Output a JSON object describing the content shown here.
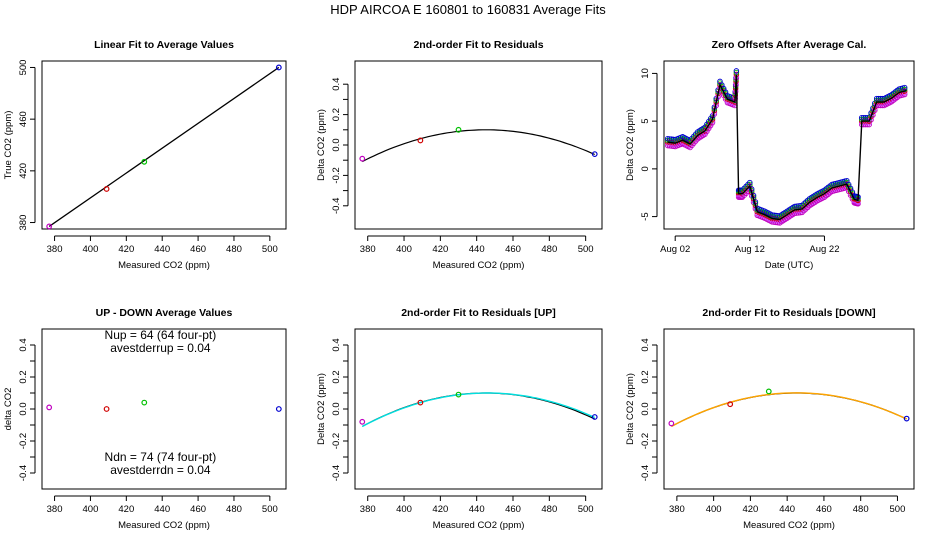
{
  "suptitle": "HDP   AIRCOA E   160801 to 160831   Average Fits",
  "colors": {
    "purple": "#c000c0",
    "red": "#d00000",
    "green": "#00c000",
    "blue": "#0000d0",
    "black": "#000000",
    "cyan": "#00e0e0",
    "orange": "#ffa500",
    "magenta": "#d040ff"
  },
  "chart_data": [
    {
      "id": "p1",
      "type": "scatter",
      "title": "Linear Fit to Average Values",
      "xlabel": "Measured CO2 (ppm)",
      "ylabel": "True CO2 (ppm)",
      "xlim": [
        373,
        509
      ],
      "ylim": [
        375,
        505
      ],
      "xticks": [
        380,
        400,
        420,
        440,
        460,
        480,
        500
      ],
      "yticks": [
        380,
        420,
        460,
        500
      ],
      "points": [
        {
          "x": 377,
          "y": 377,
          "color": "purple"
        },
        {
          "x": 409,
          "y": 406,
          "color": "red"
        },
        {
          "x": 430,
          "y": 427,
          "color": "green"
        },
        {
          "x": 505,
          "y": 500,
          "color": "blue"
        }
      ],
      "fit_lines": [
        {
          "x": [
            377,
            505
          ],
          "y": [
            377,
            500
          ],
          "color": "black"
        }
      ]
    },
    {
      "id": "p2",
      "type": "scatter",
      "title": "2nd-order Fit to Residuals",
      "xlabel": "Measured CO2 (ppm)",
      "ylabel": "Delta CO2 (ppm)",
      "xlim": [
        373,
        509
      ],
      "ylim": [
        -0.5,
        0.5
      ],
      "xticks": [
        380,
        400,
        420,
        440,
        460,
        480,
        500
      ],
      "yticks": [
        -0.4,
        -0.3,
        -0.2,
        -0.1,
        0.0,
        0.1,
        0.2,
        0.3,
        0.4
      ],
      "points": [
        {
          "x": 377,
          "y": -0.09,
          "color": "purple"
        },
        {
          "x": 409,
          "y": 0.03,
          "color": "red"
        },
        {
          "x": 430,
          "y": 0.1,
          "color": "green"
        },
        {
          "x": 505,
          "y": -0.06,
          "color": "blue"
        }
      ],
      "fit_curves": [
        {
          "vertex_x": 445,
          "vertex_y": 0.1,
          "a": -4.52e-05,
          "x_range": [
            377,
            505
          ],
          "color": "black"
        }
      ]
    },
    {
      "id": "p3",
      "type": "line",
      "title": "Zero Offsets After Average Cal.",
      "xlabel": "Date (UTC)",
      "ylabel": "Delta CO2 (ppm)",
      "xlim": [
        -0.5,
        33
      ],
      "ylim": [
        -6.3,
        11.3
      ],
      "xticks": [
        1,
        11,
        21
      ],
      "xtick_labels": [
        "Aug 02",
        "Aug 12",
        "Aug 22"
      ],
      "yticks": [
        -5,
        0,
        5,
        10
      ],
      "series": [
        {
          "name": "offset",
          "color": "black",
          "x": [
            0,
            1,
            2,
            3,
            4,
            5,
            6,
            7,
            8,
            9,
            9.2,
            9.5,
            10,
            11,
            12,
            13,
            14,
            15,
            16,
            17,
            18,
            19,
            20,
            21,
            22,
            23,
            24,
            25,
            25.5,
            26,
            27,
            28,
            29,
            30,
            31,
            32
          ],
          "y": [
            2.8,
            2.7,
            3.0,
            2.6,
            3.5,
            4.0,
            5.2,
            8.8,
            7.3,
            7.0,
            9.9,
            -2.6,
            -2.6,
            -1.8,
            -4.5,
            -4.8,
            -5.2,
            -5.3,
            -4.8,
            -4.3,
            -4.2,
            -3.5,
            -3.0,
            -2.6,
            -2.0,
            -1.8,
            -1.6,
            -3.2,
            -3.3,
            5.0,
            5.0,
            7.0,
            7.0,
            7.4,
            8.0,
            8.2
          ]
        }
      ]
    },
    {
      "id": "p4",
      "type": "scatter",
      "title": "UP - DOWN Average Values",
      "xlabel": "Measured CO2 (ppm)",
      "ylabel": "delta CO2",
      "xlim": [
        373,
        509
      ],
      "ylim": [
        -0.5,
        0.5
      ],
      "xticks": [
        380,
        400,
        420,
        440,
        460,
        480,
        500
      ],
      "yticks": [
        -0.4,
        -0.3,
        -0.2,
        -0.1,
        0.0,
        0.1,
        0.2,
        0.3,
        0.4
      ],
      "points": [
        {
          "x": 377,
          "y": 0.01,
          "color": "purple"
        },
        {
          "x": 409,
          "y": 0.0,
          "color": "red"
        },
        {
          "x": 430,
          "y": 0.04,
          "color": "green"
        },
        {
          "x": 505,
          "y": 0.0,
          "color": "blue"
        }
      ],
      "annotations": {
        "nup": "Nup = 64 (64 four-pt)",
        "avestderrup": "avestderrup =  0.04",
        "ndn": "Ndn = 74 (74 four-pt)",
        "avestderrdn": "avestderrdn =  0.04"
      }
    },
    {
      "id": "p5",
      "type": "scatter",
      "title": "2nd-order Fit to Residuals [UP]",
      "xlabel": "Measured CO2 (ppm)",
      "ylabel": "Delta CO2 (ppm)",
      "xlim": [
        373,
        509
      ],
      "ylim": [
        -0.5,
        0.5
      ],
      "xticks": [
        380,
        400,
        420,
        440,
        460,
        480,
        500
      ],
      "yticks": [
        -0.4,
        -0.3,
        -0.2,
        -0.1,
        0.0,
        0.1,
        0.2,
        0.3,
        0.4
      ],
      "points": [
        {
          "x": 377,
          "y": -0.08,
          "color": "purple"
        },
        {
          "x": 409,
          "y": 0.04,
          "color": "red"
        },
        {
          "x": 430,
          "y": 0.09,
          "color": "green"
        },
        {
          "x": 505,
          "y": -0.05,
          "color": "blue"
        }
      ],
      "fit_curves": [
        {
          "vertex_x": 445,
          "vertex_y": 0.1,
          "a": -4.52e-05,
          "x_range": [
            377,
            505
          ],
          "color": "black"
        },
        {
          "vertex_x": 446,
          "vertex_y": 0.1,
          "a": -4.4e-05,
          "x_range": [
            377,
            505
          ],
          "color": "cyan"
        }
      ]
    },
    {
      "id": "p6",
      "type": "scatter",
      "title": "2nd-order Fit to Residuals [DOWN]",
      "xlabel": "Measured CO2 (ppm)",
      "ylabel": "Delta CO2 (ppm)",
      "xlim": [
        373,
        509
      ],
      "ylim": [
        -0.5,
        0.5
      ],
      "xticks": [
        380,
        400,
        420,
        440,
        460,
        480,
        500
      ],
      "yticks": [
        -0.4,
        -0.3,
        -0.2,
        -0.1,
        0.0,
        0.1,
        0.2,
        0.3,
        0.4
      ],
      "points": [
        {
          "x": 377,
          "y": -0.09,
          "color": "purple"
        },
        {
          "x": 409,
          "y": 0.03,
          "color": "red"
        },
        {
          "x": 430,
          "y": 0.11,
          "color": "green"
        },
        {
          "x": 505,
          "y": -0.06,
          "color": "blue"
        }
      ],
      "fit_curves": [
        {
          "vertex_x": 445,
          "vertex_y": 0.1,
          "a": -4.52e-05,
          "x_range": [
            377,
            505
          ],
          "color": "black"
        },
        {
          "vertex_x": 445,
          "vertex_y": 0.101,
          "a": -4.55e-05,
          "x_range": [
            377,
            505
          ],
          "color": "orange"
        }
      ]
    }
  ]
}
